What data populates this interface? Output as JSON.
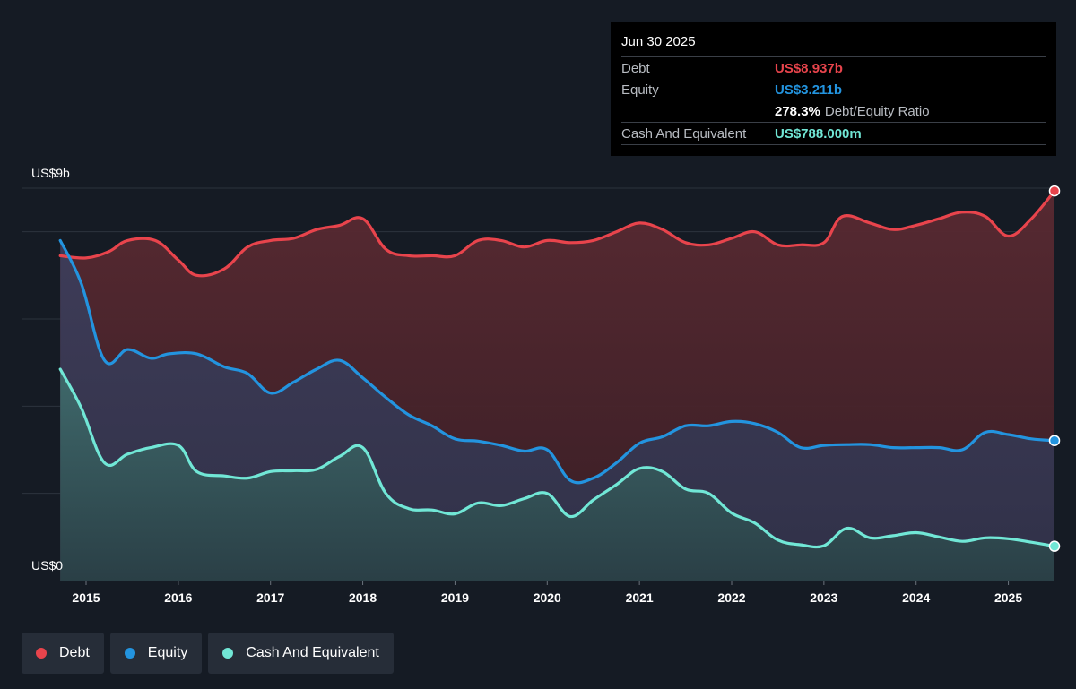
{
  "colors": {
    "background": "#151b24",
    "debt": "#e8444c",
    "equity": "#2394df",
    "cash": "#71e7d6"
  },
  "tooltip": {
    "date": "Jun 30 2025",
    "debt_label": "Debt",
    "debt_value": "US$8.937b",
    "equity_label": "Equity",
    "equity_value": "US$3.211b",
    "ratio_value": "278.3%",
    "ratio_label": "Debt/Equity Ratio",
    "cash_label": "Cash And Equivalent",
    "cash_value": "US$788.000m"
  },
  "legend": [
    {
      "label": "Debt",
      "color": "#e8444c"
    },
    {
      "label": "Equity",
      "color": "#2394df"
    },
    {
      "label": "Cash And Equivalent",
      "color": "#71e7d6"
    }
  ],
  "chart_data": {
    "type": "area",
    "title": "",
    "ylabel": "",
    "xlabel": "",
    "y_top_label": "US$9b",
    "y_bottom_label": "US$0",
    "ylim": [
      0,
      9
    ],
    "y_unit": "US$ billions",
    "xlim": [
      2014.3,
      2025.5
    ],
    "x_ticks": [
      "2015",
      "2016",
      "2017",
      "2018",
      "2019",
      "2020",
      "2021",
      "2022",
      "2023",
      "2024",
      "2025"
    ],
    "grid": true,
    "legend_position": "bottom-left",
    "series": [
      {
        "name": "Debt",
        "color": "#e8444c",
        "x": [
          2014.72,
          2015.0,
          2015.25,
          2015.45,
          2015.75,
          2016.0,
          2016.2,
          2016.5,
          2016.75,
          2017.0,
          2017.25,
          2017.5,
          2017.75,
          2018.0,
          2018.25,
          2018.5,
          2018.75,
          2019.0,
          2019.25,
          2019.5,
          2019.75,
          2020.0,
          2020.25,
          2020.5,
          2020.75,
          2021.0,
          2021.25,
          2021.5,
          2021.75,
          2022.0,
          2022.25,
          2022.5,
          2022.75,
          2023.0,
          2023.2,
          2023.5,
          2023.75,
          2024.0,
          2024.25,
          2024.5,
          2024.75,
          2025.0,
          2025.25,
          2025.5
        ],
        "values": [
          7.45,
          7.4,
          7.55,
          7.8,
          7.8,
          7.35,
          7.0,
          7.15,
          7.65,
          7.8,
          7.85,
          8.05,
          8.15,
          8.3,
          7.6,
          7.45,
          7.45,
          7.45,
          7.8,
          7.8,
          7.65,
          7.8,
          7.75,
          7.8,
          8.0,
          8.2,
          8.05,
          7.75,
          7.7,
          7.85,
          8.0,
          7.7,
          7.7,
          7.75,
          8.35,
          8.2,
          8.05,
          8.15,
          8.3,
          8.45,
          8.35,
          7.9,
          8.3,
          8.937
        ]
      },
      {
        "name": "Equity",
        "color": "#2394df",
        "x": [
          2014.72,
          2014.95,
          2015.2,
          2015.45,
          2015.7,
          2015.9,
          2016.2,
          2016.5,
          2016.75,
          2017.0,
          2017.25,
          2017.5,
          2017.75,
          2018.0,
          2018.25,
          2018.5,
          2018.75,
          2019.0,
          2019.25,
          2019.5,
          2019.75,
          2020.0,
          2020.25,
          2020.5,
          2020.75,
          2021.0,
          2021.25,
          2021.5,
          2021.75,
          2022.0,
          2022.25,
          2022.5,
          2022.75,
          2023.0,
          2023.25,
          2023.5,
          2023.75,
          2024.0,
          2024.25,
          2024.5,
          2024.75,
          2025.0,
          2025.25,
          2025.5
        ],
        "values": [
          7.8,
          6.8,
          5.05,
          5.3,
          5.1,
          5.2,
          5.2,
          4.9,
          4.75,
          4.3,
          4.55,
          4.85,
          5.05,
          4.65,
          4.2,
          3.8,
          3.55,
          3.25,
          3.2,
          3.1,
          2.97,
          3.0,
          2.3,
          2.35,
          2.7,
          3.15,
          3.3,
          3.55,
          3.55,
          3.65,
          3.6,
          3.4,
          3.05,
          3.1,
          3.12,
          3.12,
          3.05,
          3.05,
          3.05,
          3.0,
          3.4,
          3.35,
          3.25,
          3.211
        ]
      },
      {
        "name": "Cash And Equivalent",
        "color": "#71e7d6",
        "x": [
          2014.72,
          2014.95,
          2015.2,
          2015.45,
          2015.7,
          2016.0,
          2016.2,
          2016.5,
          2016.75,
          2017.0,
          2017.25,
          2017.5,
          2017.75,
          2018.0,
          2018.25,
          2018.5,
          2018.75,
          2019.0,
          2019.25,
          2019.5,
          2019.75,
          2020.0,
          2020.25,
          2020.5,
          2020.75,
          2021.0,
          2021.25,
          2021.5,
          2021.75,
          2022.0,
          2022.25,
          2022.5,
          2022.75,
          2023.0,
          2023.25,
          2023.5,
          2023.75,
          2024.0,
          2024.25,
          2024.5,
          2024.75,
          2025.0,
          2025.25,
          2025.5
        ],
        "values": [
          4.85,
          3.95,
          2.7,
          2.9,
          3.05,
          3.1,
          2.5,
          2.4,
          2.35,
          2.5,
          2.52,
          2.55,
          2.85,
          3.05,
          2.0,
          1.65,
          1.62,
          1.53,
          1.78,
          1.72,
          1.88,
          2.0,
          1.47,
          1.85,
          2.2,
          2.57,
          2.5,
          2.1,
          2.0,
          1.55,
          1.32,
          0.93,
          0.82,
          0.8,
          1.2,
          0.98,
          1.03,
          1.1,
          1.0,
          0.9,
          0.98,
          0.96,
          0.88,
          0.788
        ]
      }
    ]
  }
}
